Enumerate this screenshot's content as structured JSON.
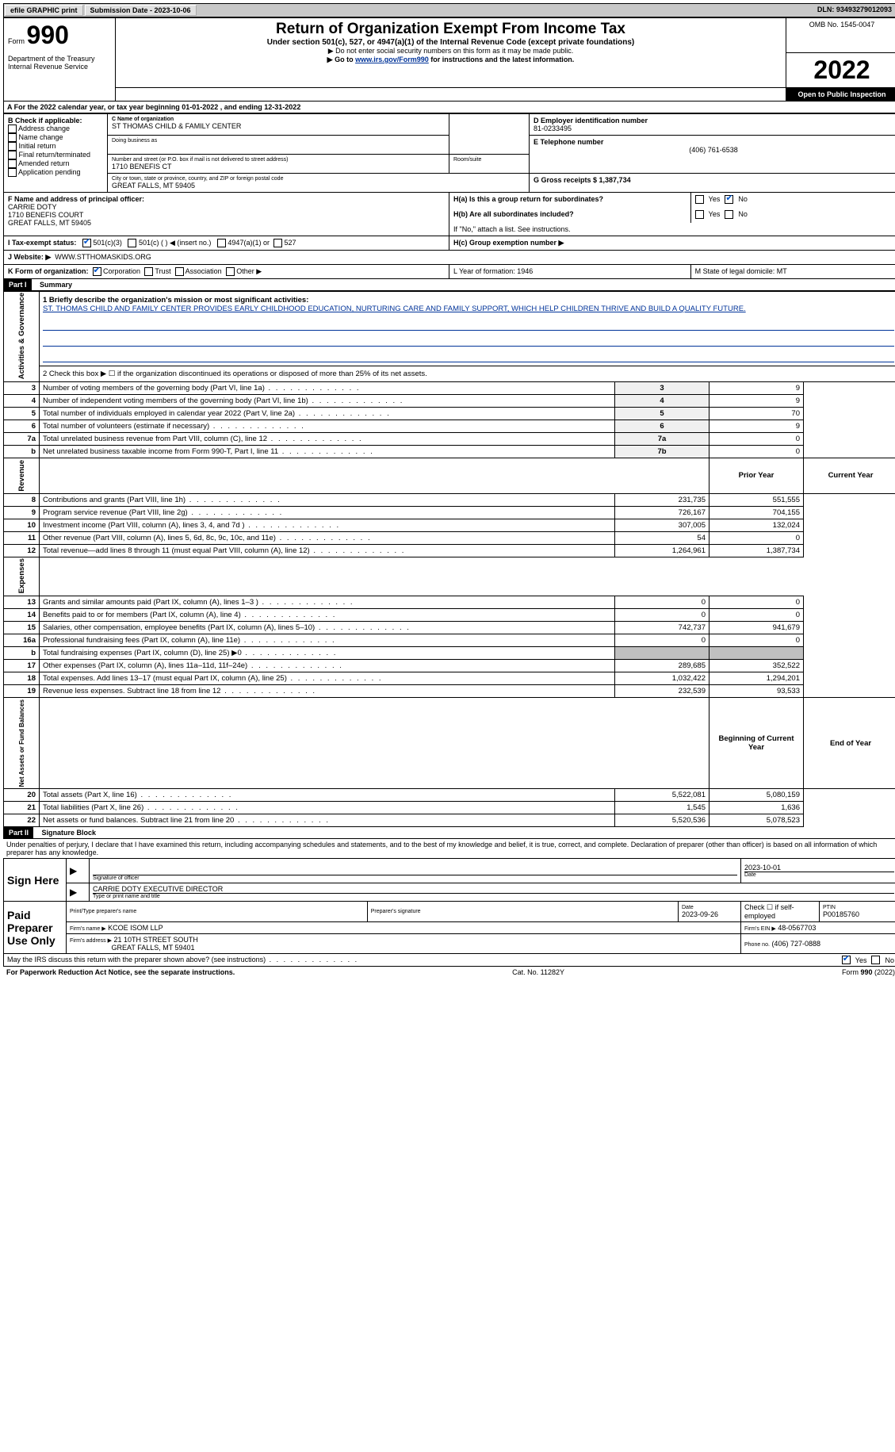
{
  "topbar": {
    "efile": "efile GRAPHIC print",
    "submission_label": "Submission Date - 2023-10-06",
    "dln_label": "DLN: 93493279012093"
  },
  "header": {
    "form_label": "Form",
    "form_number": "990",
    "dept": "Department of the Treasury Internal Revenue Service",
    "title": "Return of Organization Exempt From Income Tax",
    "subtitle": "Under section 501(c), 527, or 4947(a)(1) of the Internal Revenue Code (except private foundations)",
    "instr1": "▶ Do not enter social security numbers on this form as it may be made public.",
    "instr2_pre": "▶ Go to ",
    "instr2_link": "www.irs.gov/Form990",
    "instr2_post": " for instructions and the latest information.",
    "omb": "OMB No. 1545-0047",
    "year": "2022",
    "open": "Open to Public Inspection"
  },
  "section_a": {
    "line_a": "A For the 2022 calendar year, or tax year beginning 01-01-2022   , and ending 12-31-2022",
    "b_label": "B Check if applicable:",
    "b_items": [
      "Address change",
      "Name change",
      "Initial return",
      "Final return/terminated",
      "Amended return",
      "Application pending"
    ],
    "c_label": "C Name of organization",
    "c_name": "ST THOMAS CHILD & FAMILY CENTER",
    "dba_label": "Doing business as",
    "street_label": "Number and street (or P.O. box if mail is not delivered to street address)",
    "room_label": "Room/suite",
    "street": "1710 BENEFIS CT",
    "city_label": "City or town, state or province, country, and ZIP or foreign postal code",
    "city": "GREAT FALLS, MT  59405",
    "d_label": "D Employer identification number",
    "d_ein": "81-0233495",
    "e_label": "E Telephone number",
    "e_phone": "(406) 761-6538",
    "g_label": "G Gross receipts $ 1,387,734",
    "f_label": "F  Name and address of principal officer:",
    "f_name": "CARRIE DOTY",
    "f_street": "1710 BENEFIS COURT",
    "f_city": "GREAT FALLS, MT  59405",
    "ha_label": "H(a)  Is this a group return for subordinates?",
    "hb_label": "H(b)  Are all subordinates included?",
    "hb_note": "If \"No,\" attach a list. See instructions.",
    "hc_label": "H(c)  Group exemption number ▶",
    "yes": "Yes",
    "no": "No",
    "i_label": "I  Tax-exempt status:",
    "i_501c3": "501(c)(3)",
    "i_501c": "501(c) (  ) ◀ (insert no.)",
    "i_4947": "4947(a)(1) or",
    "i_527": "527",
    "j_label": "J  Website: ▶",
    "j_site": "WWW.STTHOMASKIDS.ORG",
    "k_label": "K Form of organization:",
    "k_corp": "Corporation",
    "k_trust": "Trust",
    "k_assoc": "Association",
    "k_other": "Other ▶",
    "l_label": "L Year of formation: 1946",
    "m_label": "M State of legal domicile: MT"
  },
  "part1": {
    "header": "Part I",
    "title": "Summary",
    "activities_label": "Activities & Governance",
    "revenue_label": "Revenue",
    "expenses_label": "Expenses",
    "netassets_label": "Net Assets or Fund Balances",
    "line1_label": "1  Briefly describe the organization's mission or most significant activities:",
    "mission": "ST. THOMAS CHILD AND FAMILY CENTER PROVIDES EARLY CHILDHOOD EDUCATION, NURTURING CARE AND FAMILY SUPPORT, WHICH HELP CHILDREN THRIVE AND BUILD A QUALITY FUTURE.",
    "line2": "2   Check this box ▶ ☐  if the organization discontinued its operations or disposed of more than 25% of its net assets.",
    "prior_year": "Prior Year",
    "current_year": "Current Year",
    "begin_year": "Beginning of Current Year",
    "end_year": "End of Year",
    "rows_gov": [
      {
        "n": "3",
        "t": "Number of voting members of the governing body (Part VI, line 1a)",
        "ln": "3",
        "v": "9"
      },
      {
        "n": "4",
        "t": "Number of independent voting members of the governing body (Part VI, line 1b)",
        "ln": "4",
        "v": "9"
      },
      {
        "n": "5",
        "t": "Total number of individuals employed in calendar year 2022 (Part V, line 2a)",
        "ln": "5",
        "v": "70"
      },
      {
        "n": "6",
        "t": "Total number of volunteers (estimate if necessary)",
        "ln": "6",
        "v": "9"
      },
      {
        "n": "7a",
        "t": "Total unrelated business revenue from Part VIII, column (C), line 12",
        "ln": "7a",
        "v": "0"
      },
      {
        "n": "b",
        "t": "Net unrelated business taxable income from Form 990-T, Part I, line 11",
        "ln": "7b",
        "v": "0"
      }
    ],
    "rows_rev": [
      {
        "n": "8",
        "t": "Contributions and grants (Part VIII, line 1h)",
        "p": "231,735",
        "c": "551,555"
      },
      {
        "n": "9",
        "t": "Program service revenue (Part VIII, line 2g)",
        "p": "726,167",
        "c": "704,155"
      },
      {
        "n": "10",
        "t": "Investment income (Part VIII, column (A), lines 3, 4, and 7d )",
        "p": "307,005",
        "c": "132,024"
      },
      {
        "n": "11",
        "t": "Other revenue (Part VIII, column (A), lines 5, 6d, 8c, 9c, 10c, and 11e)",
        "p": "54",
        "c": "0"
      },
      {
        "n": "12",
        "t": "Total revenue—add lines 8 through 11 (must equal Part VIII, column (A), line 12)",
        "p": "1,264,961",
        "c": "1,387,734"
      }
    ],
    "rows_exp": [
      {
        "n": "13",
        "t": "Grants and similar amounts paid (Part IX, column (A), lines 1–3 )",
        "p": "0",
        "c": "0"
      },
      {
        "n": "14",
        "t": "Benefits paid to or for members (Part IX, column (A), line 4)",
        "p": "0",
        "c": "0"
      },
      {
        "n": "15",
        "t": "Salaries, other compensation, employee benefits (Part IX, column (A), lines 5–10)",
        "p": "742,737",
        "c": "941,679"
      },
      {
        "n": "16a",
        "t": "Professional fundraising fees (Part IX, column (A), line 11e)",
        "p": "0",
        "c": "0"
      },
      {
        "n": "b",
        "t": "Total fundraising expenses (Part IX, column (D), line 25) ▶0",
        "p": "",
        "c": "",
        "shade": true
      },
      {
        "n": "17",
        "t": "Other expenses (Part IX, column (A), lines 11a–11d, 11f–24e)",
        "p": "289,685",
        "c": "352,522"
      },
      {
        "n": "18",
        "t": "Total expenses. Add lines 13–17 (must equal Part IX, column (A), line 25)",
        "p": "1,032,422",
        "c": "1,294,201"
      },
      {
        "n": "19",
        "t": "Revenue less expenses. Subtract line 18 from line 12",
        "p": "232,539",
        "c": "93,533"
      }
    ],
    "rows_net": [
      {
        "n": "20",
        "t": "Total assets (Part X, line 16)",
        "p": "5,522,081",
        "c": "5,080,159"
      },
      {
        "n": "21",
        "t": "Total liabilities (Part X, line 26)",
        "p": "1,545",
        "c": "1,636"
      },
      {
        "n": "22",
        "t": "Net assets or fund balances. Subtract line 21 from line 20",
        "p": "5,520,536",
        "c": "5,078,523"
      }
    ]
  },
  "part2": {
    "header": "Part II",
    "title": "Signature Block",
    "penalties": "Under penalties of perjury, I declare that I have examined this return, including accompanying schedules and statements, and to the best of my knowledge and belief, it is true, correct, and complete. Declaration of preparer (other than officer) is based on all information of which preparer has any knowledge.",
    "sign_here": "Sign Here",
    "sig_officer": "Signature of officer",
    "sig_date": "2023-10-01",
    "date_label": "Date",
    "typed_name": "CARRIE DOTY  EXECUTIVE DIRECTOR",
    "typed_label": "Type or print name and title",
    "paid": "Paid Preparer Use Only",
    "prep_name_label": "Print/Type preparer's name",
    "prep_sig_label": "Preparer's signature",
    "prep_date_label": "Date",
    "prep_date": "2023-09-26",
    "check_self": "Check ☐ if self-employed",
    "ptin_label": "PTIN",
    "ptin": "P00185760",
    "firm_name_label": "Firm's name    ▶",
    "firm_name": "KCOE ISOM LLP",
    "firm_ein_label": "Firm's EIN ▶",
    "firm_ein": "48-0567703",
    "firm_addr_label": "Firm's address ▶",
    "firm_addr1": "21 10TH STREET SOUTH",
    "firm_addr2": "GREAT FALLS, MT  59401",
    "phone_label": "Phone no.",
    "phone": "(406) 727-0888",
    "discuss": "May the IRS discuss this return with the preparer shown above? (see instructions)"
  },
  "footer": {
    "paperwork": "For Paperwork Reduction Act Notice, see the separate instructions.",
    "cat": "Cat. No. 11282Y",
    "form": "Form 990 (2022)"
  }
}
